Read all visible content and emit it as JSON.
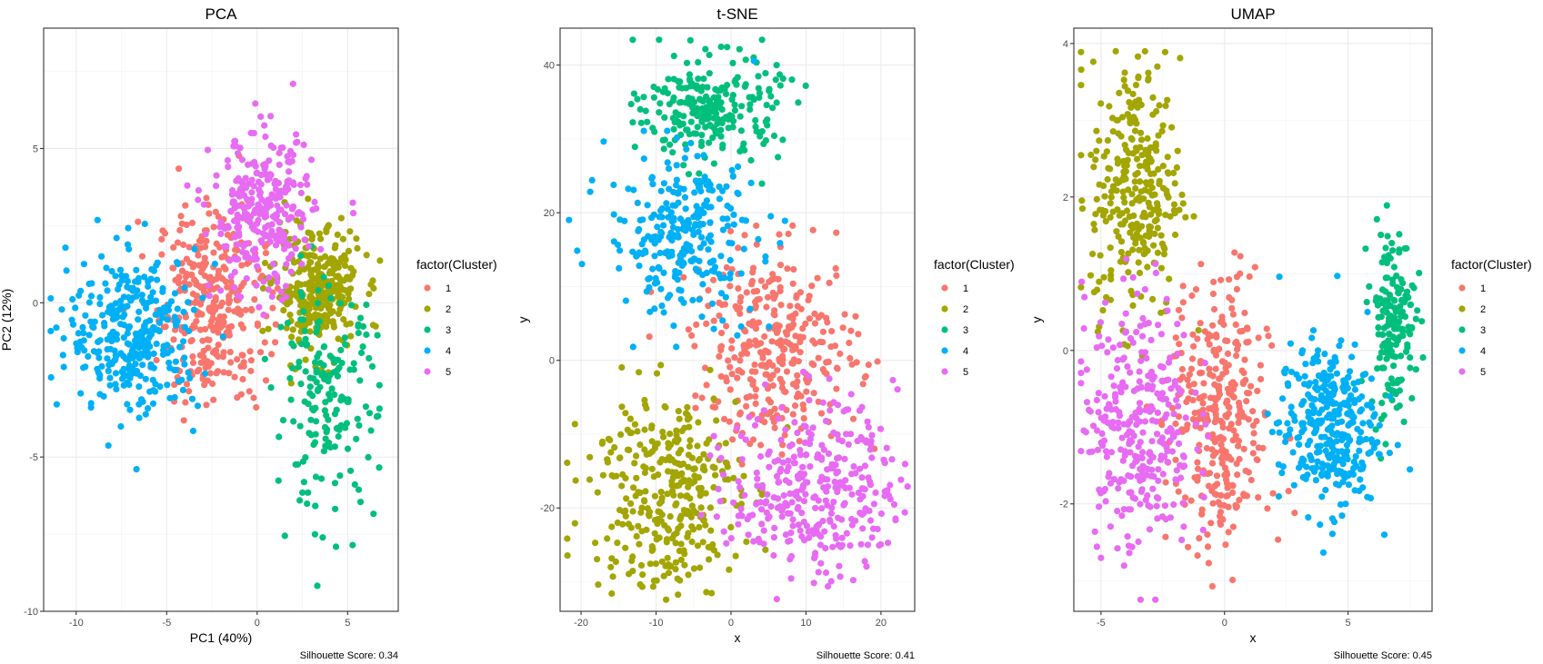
{
  "chart_data": [
    {
      "type": "scatter",
      "title": "PCA",
      "xlabel": "PC1 (40%)",
      "ylabel": "PC2 (12%)",
      "xlim": [
        -11.8,
        7.8
      ],
      "ylim": [
        -10,
        8.9
      ],
      "xticks": [
        -10,
        -5,
        0,
        5
      ],
      "yticks": [
        -10,
        -5,
        0,
        5
      ],
      "xtick_labels": [
        "-10",
        "-5",
        "0",
        "5"
      ],
      "ytick_labels": [
        "-10",
        "-5",
        "0",
        "5"
      ],
      "grid": true,
      "legend_position": "right",
      "legend_title": "factor(Cluster)",
      "caption": "Silhouette Score: 0.34",
      "series": [
        {
          "name": "1",
          "color": "#F8766D",
          "center": [
            -2.5,
            0.0
          ],
          "spread": [
            1.5,
            1.6
          ],
          "n": 330
        },
        {
          "name": "2",
          "color": "#A3A500",
          "center": [
            3.3,
            0.4
          ],
          "spread": [
            1.2,
            1.0
          ],
          "n": 300
        },
        {
          "name": "3",
          "color": "#00BF7D",
          "center": [
            3.8,
            -3.2
          ],
          "spread": [
            1.4,
            1.8
          ],
          "n": 180
        },
        {
          "name": "4",
          "color": "#00B0F6",
          "center": [
            -6.8,
            -1.0
          ],
          "spread": [
            1.8,
            1.3
          ],
          "n": 330
        },
        {
          "name": "5",
          "color": "#E76BF3",
          "center": [
            0.3,
            2.8
          ],
          "spread": [
            1.4,
            1.3
          ],
          "n": 290
        }
      ]
    },
    {
      "type": "scatter",
      "title": "t-SNE",
      "xlabel": "x",
      "ylabel": "y",
      "xlim": [
        -22.8,
        24.5
      ],
      "ylim": [
        -34,
        45
      ],
      "xticks": [
        -20,
        -10,
        0,
        10,
        20
      ],
      "yticks": [
        -20,
        0,
        20,
        40
      ],
      "xtick_labels": [
        "-20",
        "-10",
        "0",
        "10",
        "20"
      ],
      "ytick_labels": [
        "-20",
        "0",
        "20",
        "40"
      ],
      "grid": true,
      "legend_position": "right",
      "legend_title": "factor(Cluster)",
      "caption": "Silhouette Score: 0.41",
      "series": [
        {
          "name": "1",
          "color": "#F8766D",
          "center": [
            6.0,
            1.5
          ],
          "spread": [
            5.5,
            6.5
          ],
          "n": 330
        },
        {
          "name": "2",
          "color": "#A3A500",
          "center": [
            -9.0,
            -17.5
          ],
          "spread": [
            5.0,
            7.0
          ],
          "n": 330
        },
        {
          "name": "3",
          "color": "#00BF7D",
          "center": [
            -2.5,
            34.0
          ],
          "spread": [
            4.5,
            3.6
          ],
          "n": 240
        },
        {
          "name": "4",
          "color": "#00B0F6",
          "center": [
            -6.5,
            17.0
          ],
          "spread": [
            5.0,
            5.5
          ],
          "n": 270
        },
        {
          "name": "5",
          "color": "#E76BF3",
          "center": [
            11.0,
            -17.0
          ],
          "spread": [
            5.5,
            6.0
          ],
          "n": 330
        }
      ]
    },
    {
      "type": "scatter",
      "title": "UMAP",
      "xlabel": "x",
      "ylabel": "y",
      "xlim": [
        -6.1,
        8.4
      ],
      "ylim": [
        -3.4,
        4.2
      ],
      "xticks": [
        -5,
        0,
        5
      ],
      "yticks": [
        -2,
        0,
        2,
        4
      ],
      "xtick_labels": [
        "-5",
        "0",
        "5"
      ],
      "ytick_labels": [
        "-2",
        "0",
        "2",
        "4"
      ],
      "grid": true,
      "legend_position": "right",
      "legend_title": "factor(Cluster)",
      "caption": "Silhouette Score: 0.45",
      "series": [
        {
          "name": "1",
          "color": "#F8766D",
          "center": [
            -0.2,
            -0.9
          ],
          "spread": [
            1.0,
            0.9
          ],
          "n": 330
        },
        {
          "name": "2",
          "color": "#A3A500",
          "center": [
            -3.6,
            2.1
          ],
          "spread": [
            0.9,
            0.85
          ],
          "n": 300
        },
        {
          "name": "3",
          "color": "#00BF7D",
          "center": [
            6.8,
            0.4
          ],
          "spread": [
            0.45,
            0.6
          ],
          "n": 170
        },
        {
          "name": "4",
          "color": "#00B0F6",
          "center": [
            4.2,
            -1.0
          ],
          "spread": [
            1.0,
            0.55
          ],
          "n": 330
        },
        {
          "name": "5",
          "color": "#E76BF3",
          "center": [
            -3.5,
            -0.9
          ],
          "spread": [
            1.1,
            0.85
          ],
          "n": 310
        }
      ]
    }
  ]
}
